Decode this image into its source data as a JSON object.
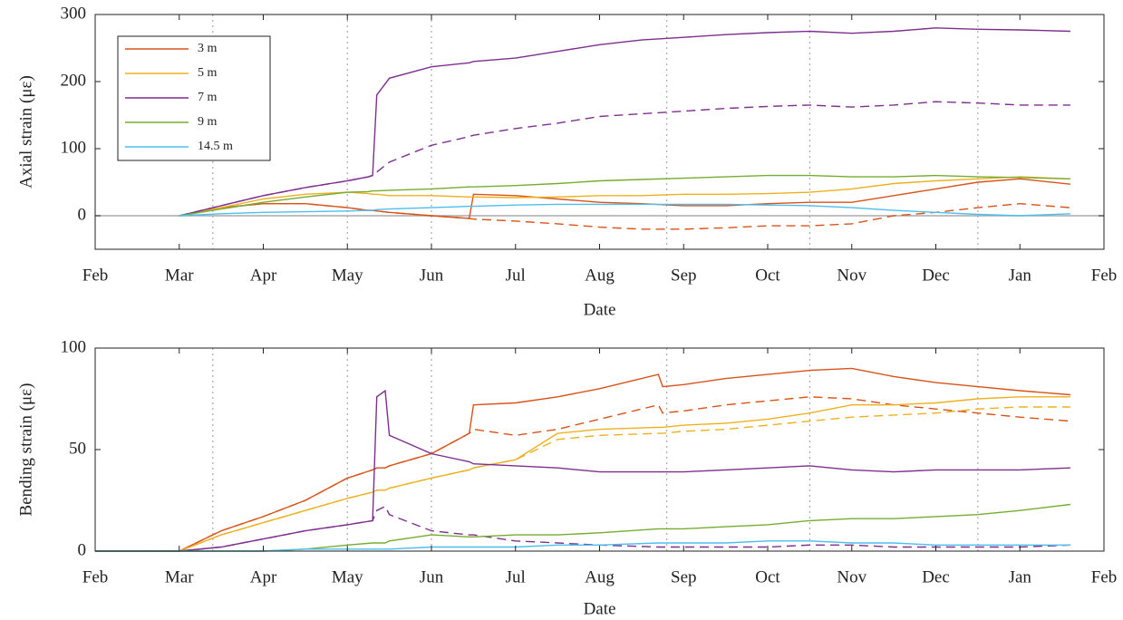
{
  "chart_data": [
    {
      "type": "line",
      "ylabel": "Axial strain (με)",
      "xlabel": "Date",
      "xlim": [
        0,
        12
      ],
      "xticks": [
        {
          "value": 0,
          "label": "Feb"
        },
        {
          "value": 1,
          "label": "Mar"
        },
        {
          "value": 2,
          "label": "Apr"
        },
        {
          "value": 3,
          "label": "May"
        },
        {
          "value": 4,
          "label": "Jun"
        },
        {
          "value": 5,
          "label": "Jul"
        },
        {
          "value": 6,
          "label": "Aug"
        },
        {
          "value": 7,
          "label": "Sep"
        },
        {
          "value": 8,
          "label": "Oct"
        },
        {
          "value": 9,
          "label": "Nov"
        },
        {
          "value": 10,
          "label": "Dec"
        },
        {
          "value": 11,
          "label": "Jan"
        },
        {
          "value": 12,
          "label": "Feb"
        }
      ],
      "ylim": [
        -50,
        300
      ],
      "yticks": [
        0,
        100,
        200,
        300
      ],
      "zero_line": true,
      "legend": "upper left",
      "vlines": [
        1.4,
        3.0,
        4.0,
        6.8,
        8.5,
        10.5
      ],
      "x": [
        1.0,
        1.5,
        2.0,
        2.5,
        3.0,
        3.25,
        3.3,
        3.35,
        3.5,
        4.0,
        4.45,
        4.5,
        5.0,
        5.5,
        6.0,
        6.5,
        7.0,
        7.5,
        8.0,
        8.5,
        9.0,
        9.5,
        10.0,
        10.5,
        11.0,
        11.6
      ],
      "series": [
        {
          "name": "3 m",
          "color": "#d95319",
          "dash": false,
          "values": [
            0,
            12,
            18,
            18,
            12,
            8,
            8,
            7,
            5,
            0,
            -4,
            32,
            30,
            25,
            20,
            18,
            15,
            15,
            18,
            20,
            20,
            30,
            40,
            50,
            55,
            47
          ]
        },
        {
          "color": "#d95319",
          "dash": true,
          "values": [
            0,
            12,
            18,
            18,
            12,
            8,
            8,
            7,
            5,
            0,
            -4,
            -5,
            -8,
            -12,
            -17,
            -20,
            -20,
            -18,
            -15,
            -15,
            -12,
            0,
            5,
            12,
            18,
            12
          ]
        },
        {
          "name": "5 m",
          "color": "#edb120",
          "dash": false,
          "values": [
            0,
            12,
            25,
            32,
            35,
            33,
            32,
            32,
            30,
            30,
            28,
            28,
            27,
            28,
            30,
            30,
            32,
            32,
            33,
            35,
            40,
            48,
            52,
            55,
            58,
            55
          ]
        },
        {
          "name": "7 m",
          "color": "#7e2f8e",
          "dash": false,
          "values": [
            0,
            15,
            30,
            42,
            52,
            58,
            60,
            180,
            205,
            222,
            228,
            230,
            235,
            245,
            255,
            262,
            266,
            270,
            273,
            275,
            272,
            275,
            280,
            278,
            277,
            275
          ]
        },
        {
          "color": "#7e2f8e",
          "dash": true,
          "values": [
            0,
            15,
            30,
            42,
            52,
            58,
            60,
            65,
            80,
            105,
            118,
            120,
            130,
            138,
            148,
            152,
            156,
            160,
            163,
            165,
            162,
            165,
            170,
            168,
            165,
            165
          ]
        },
        {
          "name": "9 m",
          "color": "#77ac30",
          "dash": false,
          "values": [
            0,
            10,
            20,
            28,
            35,
            36,
            37,
            37,
            38,
            40,
            43,
            43,
            45,
            48,
            52,
            54,
            56,
            58,
            60,
            60,
            58,
            58,
            60,
            58,
            57,
            55
          ]
        },
        {
          "name": "14.5 m",
          "color": "#4dbeee",
          "dash": false,
          "values": [
            0,
            3,
            5,
            6,
            7,
            8,
            8,
            9,
            10,
            12,
            14,
            14,
            16,
            17,
            17,
            17,
            17,
            17,
            16,
            15,
            12,
            8,
            5,
            2,
            0,
            3
          ]
        }
      ]
    },
    {
      "type": "line",
      "ylabel": "Bending strain (με)",
      "xlabel": "Date",
      "xlim": [
        0,
        12
      ],
      "xticks": [
        {
          "value": 0,
          "label": "Feb"
        },
        {
          "value": 1,
          "label": "Mar"
        },
        {
          "value": 2,
          "label": "Apr"
        },
        {
          "value": 3,
          "label": "May"
        },
        {
          "value": 4,
          "label": "Jun"
        },
        {
          "value": 5,
          "label": "Jul"
        },
        {
          "value": 6,
          "label": "Aug"
        },
        {
          "value": 7,
          "label": "Sep"
        },
        {
          "value": 8,
          "label": "Oct"
        },
        {
          "value": 9,
          "label": "Nov"
        },
        {
          "value": 10,
          "label": "Dec"
        },
        {
          "value": 11,
          "label": "Jan"
        },
        {
          "value": 12,
          "label": "Feb"
        }
      ],
      "ylim": [
        0,
        100
      ],
      "yticks": [
        0,
        50,
        100
      ],
      "zero_line": false,
      "vlines": [
        1.4,
        3.0,
        4.0,
        6.8,
        8.5,
        10.5
      ],
      "x": [
        0,
        1.0,
        1.5,
        2.0,
        2.5,
        3.0,
        3.3,
        3.35,
        3.45,
        3.5,
        4.0,
        4.45,
        4.5,
        5.0,
        5.5,
        6.0,
        6.7,
        6.75,
        7.0,
        7.5,
        8.0,
        8.5,
        9.0,
        9.5,
        10.0,
        10.5,
        11.0,
        11.6
      ],
      "series": [
        {
          "color": "#d95319",
          "dash": false,
          "values": [
            0,
            0,
            10,
            17,
            25,
            36,
            40,
            41,
            41,
            42,
            48,
            58,
            72,
            73,
            76,
            80,
            87,
            81,
            82,
            85,
            87,
            89,
            90,
            86,
            83,
            81,
            79,
            77
          ]
        },
        {
          "color": "#d95319",
          "dash": true,
          "values": [
            0,
            0,
            10,
            17,
            25,
            36,
            40,
            41,
            41,
            42,
            48,
            58,
            60,
            57,
            60,
            65,
            72,
            68,
            69,
            72,
            74,
            76,
            75,
            72,
            70,
            68,
            66,
            64
          ]
        },
        {
          "color": "#edb120",
          "dash": false,
          "values": [
            0,
            0,
            8,
            14,
            20,
            26,
            29,
            30,
            30,
            31,
            36,
            40,
            41,
            45,
            58,
            60,
            61,
            61,
            62,
            63,
            65,
            68,
            72,
            72,
            73,
            75,
            76,
            76
          ]
        },
        {
          "color": "#edb120",
          "dash": true,
          "values": [
            0,
            0,
            8,
            14,
            20,
            26,
            29,
            30,
            30,
            31,
            36,
            40,
            41,
            45,
            55,
            57,
            58,
            58,
            59,
            60,
            62,
            64,
            66,
            67,
            68,
            70,
            71,
            71
          ]
        },
        {
          "color": "#7e2f8e",
          "dash": false,
          "values": [
            0,
            0,
            2,
            6,
            10,
            13,
            15,
            76,
            79,
            57,
            48,
            44,
            43,
            42,
            41,
            39,
            39,
            39,
            39,
            40,
            41,
            42,
            40,
            39,
            40,
            40,
            40,
            41
          ]
        },
        {
          "color": "#7e2f8e",
          "dash": true,
          "values": [
            0,
            0,
            2,
            6,
            10,
            13,
            15,
            20,
            22,
            18,
            10,
            8,
            8,
            5,
            4,
            3,
            2,
            2,
            2,
            2,
            2,
            3,
            3,
            2,
            2,
            2,
            2,
            3
          ]
        },
        {
          "color": "#77ac30",
          "dash": false,
          "values": [
            0,
            0,
            0,
            0,
            1,
            3,
            4,
            4,
            4,
            5,
            8,
            7,
            7,
            8,
            8,
            9,
            11,
            11,
            11,
            12,
            13,
            15,
            16,
            16,
            17,
            18,
            20,
            23
          ]
        },
        {
          "color": "#4dbeee",
          "dash": false,
          "values": [
            0,
            0,
            0,
            0,
            1,
            1,
            1,
            1,
            1,
            1,
            2,
            2,
            2,
            2,
            3,
            3,
            4,
            4,
            4,
            4,
            5,
            5,
            4,
            4,
            3,
            3,
            3,
            3
          ]
        }
      ]
    }
  ]
}
